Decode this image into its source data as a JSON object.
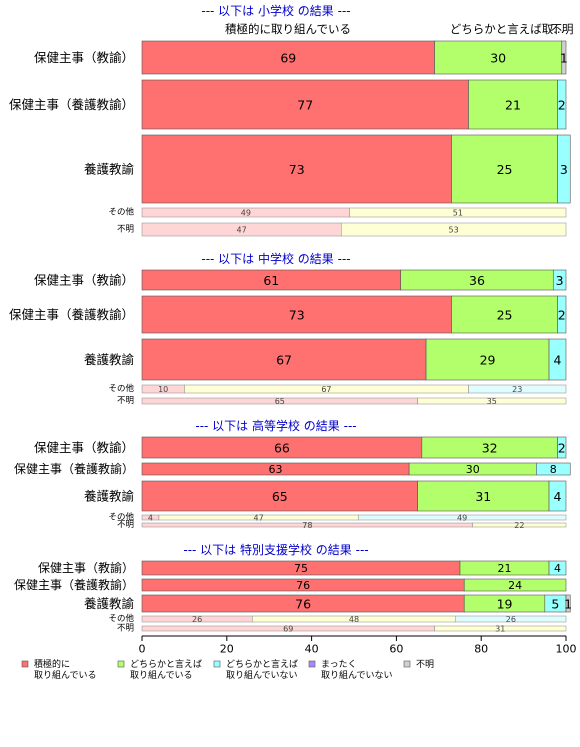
{
  "colors": {
    "active": "#ff7070",
    "somewhat_active": "#b3ff6b",
    "somewhat_not": "#99ffff",
    "not_at_all": "#aa88ff",
    "unknown": "#d0d0d0",
    "section_title": "#0000cc"
  },
  "top_labels": {
    "active": "積極的に取り組んでいる",
    "somewhat": "どちらかと言えば取...",
    "unknown": "不明"
  },
  "legend": [
    {
      "key": "active",
      "label": "積極的に\n取り組んでいる"
    },
    {
      "key": "somewhat_active",
      "label": "どちらかと言えば\n取り組んでいる"
    },
    {
      "key": "somewhat_not",
      "label": "どちらかと言えば\n取り組んでいない"
    },
    {
      "key": "not_at_all",
      "label": "まったく\n取り組んでいない"
    },
    {
      "key": "unknown",
      "label": "不明"
    }
  ],
  "chart_data": {
    "type": "bar",
    "orientation": "horizontal-stacked",
    "xlim": [
      0,
      100
    ],
    "xticks": [
      0,
      20,
      40,
      60,
      80,
      100
    ],
    "sections": [
      {
        "title": "--- 以下は 小学校 の結果 ---",
        "rows": [
          {
            "label": "保健主事（教諭）",
            "values": [
              69,
              30,
              0,
              0,
              1
            ],
            "labels": [
              "69",
              "30",
              "",
              "",
              "1"
            ]
          },
          {
            "label": "保健主事（養護教諭）",
            "values": [
              77,
              21,
              2,
              0,
              0
            ],
            "labels": [
              "77",
              "21",
              "2",
              "",
              ""
            ]
          },
          {
            "label": "養護教諭",
            "values": [
              73,
              25,
              3,
              0,
              0
            ],
            "labels": [
              "73",
              "25",
              "3",
              "",
              ""
            ]
          }
        ],
        "minor_rows": [
          {
            "label": "その他",
            "values": [
              49,
              51
            ],
            "labels": [
              "49",
              "51"
            ]
          },
          {
            "label": "不明",
            "values": [
              47,
              53
            ],
            "labels": [
              "47",
              "53"
            ]
          }
        ]
      },
      {
        "title": "--- 以下は 中学校 の結果 ---",
        "rows": [
          {
            "label": "保健主事（教諭）",
            "values": [
              61,
              36,
              3,
              0,
              0
            ],
            "labels": [
              "61",
              "36",
              "3",
              "",
              ""
            ]
          },
          {
            "label": "保健主事（養護教諭）",
            "values": [
              73,
              25,
              2,
              0,
              0
            ],
            "labels": [
              "73",
              "25",
              "2",
              "",
              ""
            ]
          },
          {
            "label": "養護教諭",
            "values": [
              67,
              29,
              4,
              0,
              0
            ],
            "labels": [
              "67",
              "29",
              "4",
              "",
              ""
            ]
          }
        ],
        "minor_rows": [
          {
            "label": "その他",
            "values": [
              10,
              67,
              23
            ],
            "labels": [
              "10",
              "67",
              "23"
            ]
          },
          {
            "label": "不明",
            "values": [
              65,
              35
            ],
            "labels": [
              "65",
              "35"
            ]
          }
        ]
      },
      {
        "title": "--- 以下は 高等学校 の結果 ---",
        "rows": [
          {
            "label": "保健主事（教諭）",
            "values": [
              66,
              32,
              2,
              0,
              0
            ],
            "labels": [
              "66",
              "32",
              "2",
              "",
              ""
            ]
          },
          {
            "label": "保健主事（養護教諭）",
            "values": [
              63,
              30,
              8,
              0,
              0
            ],
            "labels": [
              "63",
              "30",
              "8",
              "",
              ""
            ]
          },
          {
            "label": "養護教諭",
            "values": [
              65,
              31,
              4,
              0,
              0
            ],
            "labels": [
              "65",
              "31",
              "4",
              "",
              ""
            ]
          }
        ],
        "minor_rows": [
          {
            "label": "その他",
            "values": [
              4,
              47,
              49
            ],
            "labels": [
              "4",
              "47",
              "49"
            ]
          },
          {
            "label": "不明",
            "values": [
              78,
              22
            ],
            "labels": [
              "78",
              "22"
            ]
          }
        ]
      },
      {
        "title": "--- 以下は 特別支援学校 の結果 ---",
        "rows": [
          {
            "label": "保健主事（教諭）",
            "values": [
              75,
              21,
              4,
              0,
              0
            ],
            "labels": [
              "75",
              "21",
              "4",
              "",
              ""
            ]
          },
          {
            "label": "保健主事（養護教諭）",
            "values": [
              76,
              24,
              0,
              0,
              0
            ],
            "labels": [
              "76",
              "24",
              "",
              "",
              ""
            ]
          },
          {
            "label": "養護教諭",
            "values": [
              76,
              19,
              5,
              0,
              1
            ],
            "labels": [
              "76",
              "19",
              "5",
              "",
              "1"
            ]
          }
        ],
        "minor_rows": [
          {
            "label": "その他",
            "values": [
              26,
              48,
              26
            ],
            "labels": [
              "26",
              "48",
              "26"
            ]
          },
          {
            "label": "不明",
            "values": [
              69,
              31
            ],
            "labels": [
              "69",
              "31"
            ]
          }
        ]
      }
    ]
  }
}
